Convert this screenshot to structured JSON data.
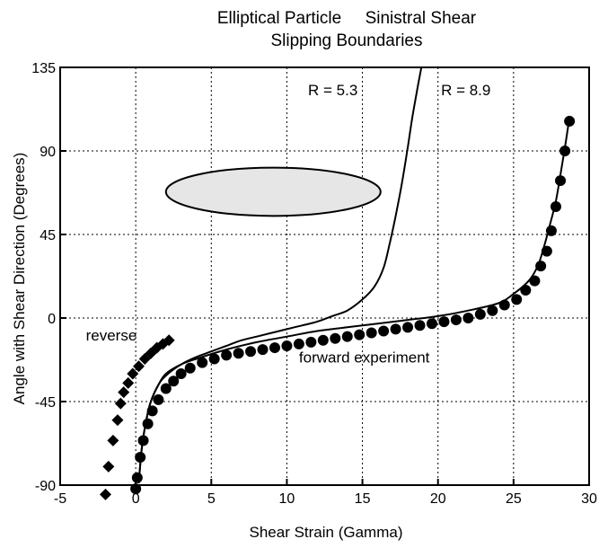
{
  "chart_data": {
    "type": "scatter",
    "title_lines": [
      "Elliptical Particle     Sinistral Shear",
      "Slipping Boundaries"
    ],
    "xlabel": "Shear Strain (Gamma)",
    "ylabel": "Angle with Shear Direction (Degrees)",
    "xlim": [
      -5,
      30
    ],
    "ylim": [
      -90,
      135
    ],
    "x_ticks": [
      -5,
      0,
      5,
      10,
      15,
      20,
      25,
      30
    ],
    "y_ticks": [
      -90,
      -45,
      0,
      45,
      90,
      135
    ],
    "x_tick_labels": [
      "-5",
      "0",
      "5",
      "10",
      "15",
      "20",
      "25",
      "30"
    ],
    "y_tick_labels": [
      "-90",
      "-45",
      "0",
      "45",
      "90",
      "135"
    ],
    "grid": true,
    "annotations": [
      {
        "text": "R = 5.3",
        "x": 11.4,
        "y": 120
      },
      {
        "text": "R = 8.9",
        "x": 20.2,
        "y": 120
      },
      {
        "text": "reverse",
        "x": -3.3,
        "y": -12
      },
      {
        "text": "forward experiment",
        "x": 10.8,
        "y": -24
      }
    ],
    "inset": {
      "shape": "ellipse",
      "fill": "#e6e6e6",
      "center": [
        9.1,
        68
      ],
      "semi_axes_data": [
        7.1,
        13
      ]
    },
    "curves": [
      {
        "label": "R = 5.3",
        "x": [
          0.2,
          0.4,
          0.7,
          1.0,
          1.5,
          2.0,
          3.0,
          4.0,
          5.0,
          6.0,
          7.0,
          8.0,
          9.0,
          10.0,
          11.0,
          12.0,
          13.0,
          14.0,
          15.0,
          15.8,
          16.4,
          16.8,
          17.2,
          17.6,
          18.0,
          18.3,
          18.6,
          18.9
        ],
        "y": [
          -89,
          -70,
          -55,
          -45,
          -36,
          -31,
          -25,
          -21,
          -18,
          -15,
          -12,
          -10,
          -8,
          -6,
          -4,
          -2,
          1,
          4,
          10,
          17,
          27,
          40,
          55,
          72,
          92,
          108,
          122,
          135
        ]
      },
      {
        "label": "R = 8.9",
        "x": [
          0.2,
          0.4,
          0.7,
          1.0,
          1.5,
          2.0,
          3.0,
          4.0,
          6.0,
          8.0,
          10.0,
          12.0,
          14.0,
          16.0,
          18.0,
          20.0,
          22.0,
          24.0,
          25.0,
          26.0,
          26.6,
          27.0,
          27.4,
          27.8,
          28.1,
          28.4,
          28.7
        ],
        "y": [
          -89,
          -70,
          -55,
          -45,
          -36,
          -30,
          -25,
          -22,
          -17,
          -13,
          -10,
          -7,
          -5,
          -3,
          -1,
          1,
          4,
          8,
          13,
          20,
          28,
          38,
          50,
          63,
          77,
          92,
          108
        ]
      }
    ],
    "series": [
      {
        "name": "forward experiment",
        "marker": "circle",
        "x": [
          0.0,
          0.1,
          0.3,
          0.5,
          0.8,
          1.1,
          1.5,
          2.0,
          2.5,
          3.0,
          3.6,
          4.4,
          5.2,
          6.0,
          6.8,
          7.6,
          8.4,
          9.2,
          10.0,
          10.8,
          11.6,
          12.4,
          13.2,
          14.0,
          14.8,
          15.6,
          16.4,
          17.2,
          18.0,
          18.8,
          19.6,
          20.4,
          21.2,
          22.0,
          22.8,
          23.6,
          24.4,
          25.2,
          25.8,
          26.4,
          26.8,
          27.2,
          27.5,
          27.8,
          28.1,
          28.4,
          28.7
        ],
        "y": [
          -92,
          -86,
          -75,
          -66,
          -57,
          -50,
          -44,
          -38,
          -34,
          -30,
          -27,
          -24,
          -22,
          -20,
          -19,
          -18,
          -17,
          -16,
          -15,
          -14,
          -13,
          -12,
          -11,
          -10,
          -9,
          -8,
          -7,
          -6,
          -5,
          -4,
          -3,
          -2,
          -1,
          0,
          2,
          4,
          7,
          10,
          15,
          20,
          28,
          36,
          47,
          60,
          74,
          90,
          106
        ]
      },
      {
        "name": "reverse",
        "marker": "diamond",
        "x": [
          2.2,
          1.8,
          1.4,
          1.0,
          0.6,
          0.2,
          -0.2,
          -0.5,
          -0.8,
          -1.0,
          -1.2,
          -1.5,
          -1.8,
          -2.0
        ],
        "y": [
          -12,
          -14,
          -16,
          -19,
          -22,
          -26,
          -30,
          -35,
          -40,
          -46,
          -55,
          -66,
          -80,
          -95
        ]
      }
    ]
  }
}
